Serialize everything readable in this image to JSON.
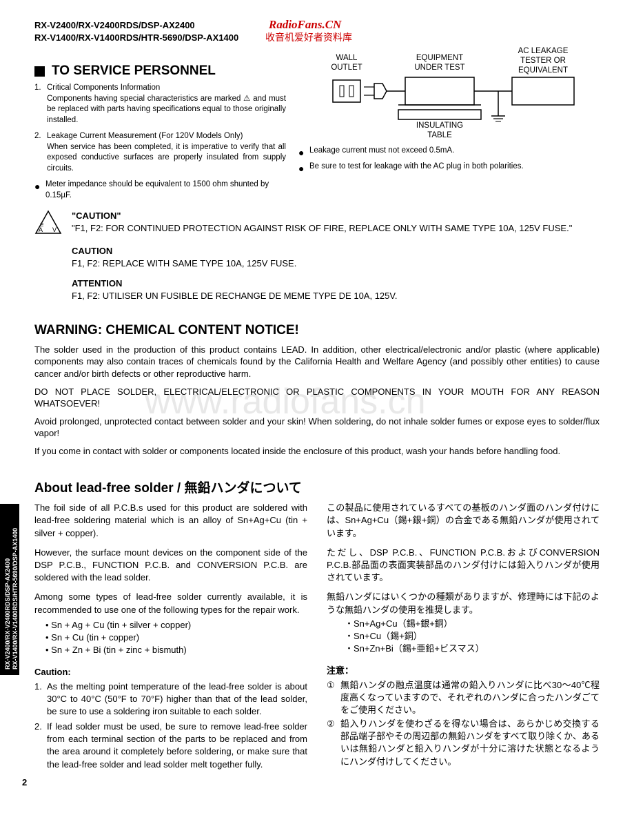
{
  "header": {
    "line1": "RX-V2400/RX-V2400RDS/DSP-AX2400",
    "line2": "RX-V1400/RX-V1400RDS/HTR-5690/DSP-AX1400"
  },
  "watermark": {
    "red": "RadioFans.CN",
    "cn": "收音机爱好者资料库",
    "bg": "www.radiofans.cn"
  },
  "service": {
    "heading": "TO SERVICE PERSONNEL",
    "item1_title": "Critical Components Information",
    "item1_body": "Components having special characteristics are marked ⚠ and must be replaced with parts having specifications equal to those originally installed.",
    "item2_title": "Leakage Current Measurement (For 120V Models Only)",
    "item2_body": "When service has been completed, it is imperative to verify that all exposed conductive surfaces are properly insulated from supply circuits.",
    "bullet1": "Meter impedance should be equivalent to 1500 ohm shunted by 0.15µF.",
    "bullet2": "Leakage current must not exceed 0.5mA.",
    "bullet3": "Be sure to test for leakage with the AC plug in both polarities."
  },
  "diagram": {
    "wall": "WALL\nOUTLET",
    "equip": "EQUIPMENT\nUNDER TEST",
    "tester": "AC LEAKAGE\nTESTER OR\nEQUIVALENT",
    "table": "INSULATING\nTABLE"
  },
  "caution": {
    "h1": "\"CAUTION\"",
    "t1": "\"F1, F2: FOR CONTINUED PROTECTION AGAINST RISK OF FIRE, REPLACE ONLY WITH SAME TYPE 10A, 125V FUSE.\"",
    "h2": "CAUTION",
    "t2": "F1, F2: REPLACE WITH SAME TYPE 10A, 125V FUSE.",
    "h3": "ATTENTION",
    "t3": "F1, F2: UTILISER UN FUSIBLE DE RECHANGE DE MEME TYPE DE 10A, 125V."
  },
  "warning": {
    "heading": "WARNING: CHEMICAL CONTENT NOTICE!",
    "p1": "The solder used in the production of this product contains LEAD.  In addition, other electrical/electronic and/or plastic (where applicable) components may also contain traces of chemicals found by the California Health and Welfare Agency (and possibly other entities) to cause cancer and/or birth defects or other reproductive harm.",
    "p2": "DO NOT PLACE SOLDER, ELECTRICAL/ELECTRONIC OR PLASTIC COMPONENTS IN YOUR MOUTH FOR ANY REASON WHATSOEVER!",
    "p3": "Avoid prolonged, unprotected contact between solder and your skin!  When soldering, do not inhale solder fumes or expose eyes to solder/flux vapor!",
    "p4": "If you come in contact with solder or components located inside the enclosure of this product, wash your hands before handling food."
  },
  "solder": {
    "heading": "About lead-free solder / 無鉛ハンダについて",
    "en_p1": "The foil side of all P.C.B.s used for this product are soldered with lead-free soldering material which is an alloy of Sn+Ag+Cu (tin + silver + copper).",
    "en_p2": "However, the surface mount devices on the component side of the DSP P.C.B., FUNCTION P.C.B. and CONVERSION P.C.B. are soldered with the lead solder.",
    "en_p3": "Among some types of lead-free solder currently available, it is recommended to use one of the following types for the repair work.",
    "en_li1": "Sn + Ag + Cu (tin + silver + copper)",
    "en_li2": "Sn + Cu (tin + copper)",
    "en_li3": "Sn + Zn + Bi (tin + zinc + bismuth)",
    "en_caution_h": "Caution:",
    "en_c1": "As the melting point temperature of the lead-free solder is about 30°C to 40°C (50°F to 70°F) higher than that of the lead solder, be sure to use a soldering iron suitable to each solder.",
    "en_c2": "If lead solder must be used, be sure to remove lead-free solder from each terminal section of the parts to be replaced and from the area around it completely before soldering, or make sure that the lead-free solder and lead solder melt together fully.",
    "jp_p1": "この製品に使用されているすべての基板のハンダ面のハンダ付けには、Sn+Ag+Cu（錫+銀+銅）の合金である無鉛ハンダが使用されています。",
    "jp_p2": "ただし、DSP P.C.B.、FUNCTION P.C.B.およびCONVERSION P.C.B.部品面の表面実装部品のハンダ付けには鉛入りハンダが使用されています。",
    "jp_p3": "無鉛ハンダにはいくつかの種類がありますが、修理時には下記のような無鉛ハンダの使用を推奨します。",
    "jp_li1": "・Sn+Ag+Cu（錫+銀+銅）",
    "jp_li2": "・Sn+Cu（錫+銅）",
    "jp_li3": "・Sn+Zn+Bi（錫+亜鉛+ビスマス）",
    "jp_caution_h": "注意：",
    "jp_c1": "無鉛ハンダの融点温度は通常の鉛入りハンダに比べ30～40℃程度高くなっていますので、それぞれのハンダに合ったハンダごてをご使用ください。",
    "jp_c2": "鉛入りハンダを使わざるを得ない場合は、あらかじめ交換する部品端子部やその周辺部の無鉛ハンダをすべて取り除くか、あるいは無鉛ハンダと鉛入りハンダが十分に溶けた状態となるようにハンダ付けしてください。"
  },
  "sidetab": {
    "l1": "RX-V2400/RX-V2400RDS/DSP-AX2400",
    "l2": "RX-V1400/RX-V1400RDS/HTR-5690/DSP-AX1400"
  },
  "page_num": "2"
}
